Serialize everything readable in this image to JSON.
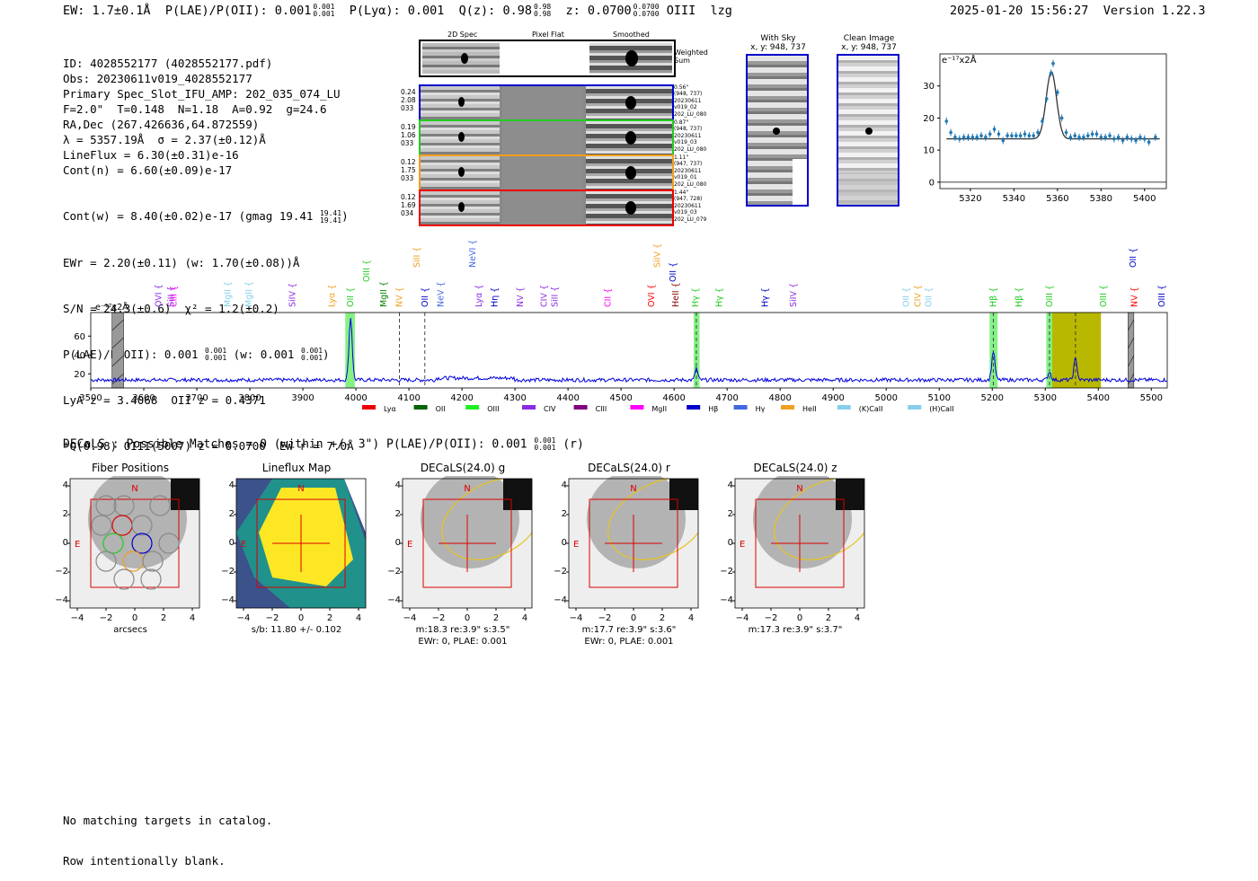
{
  "header": {
    "ew": "EW: 1.7±0.1Å",
    "plae_label": "P(LAE)/P(OII): 0.001",
    "plae_sup": "0.001",
    "plae_sub": "0.001",
    "plya": "P(Lyα): 0.001",
    "qz_label": "Q(z): 0.98",
    "qz_sup": "0.98",
    "qz_sub": "0.98",
    "z_label": "z: 0.0700",
    "z_sup": "0.0700",
    "z_sub": "0.0700",
    "z_line": "OIII",
    "flag": "lzg",
    "timestamp": "2025-01-20 15:56:27",
    "version": "Version 1.22.3"
  },
  "info": {
    "lines": [
      "ID: 4028552177 (4028552177.pdf)",
      "Obs: 20230611v019_4028552177",
      "Primary Spec_Slot_IFU_AMP: 202_035_074_LU",
      "F=2.0\"  T=0.148  N=1.18  A=0.92  g=24.6",
      "RA,Dec (267.426636,64.872559)",
      "λ = 5357.19Å  σ = 2.37(±0.12)Å",
      "LineFlux = 6.30(±0.31)e-16",
      "Cont(n) = 6.60(±0.09)e-17"
    ],
    "contw": "Cont(w) = 8.40(±0.02)e-17 (gmag 19.41",
    "contw_sup": "19.41",
    "contw_sub": "19.41",
    "contw_end": ")",
    "ewr": "EWr = 2.20(±0.11) (w: 1.70(±0.08))Å",
    "sn": "S/N = 24.3(±0.6)  χ² = 1.2(±0.2)",
    "plae2": "P(LAE)/P(OII): 0.001",
    "plae2_sup": "0.001",
    "plae2_sub": "0.001",
    "plae2_w": "(w: 0.001",
    "plae2_w_sup": "0.001",
    "plae2_w_sub": "0.001",
    "plae2_end": ")",
    "lya": "LyA z = 3.4068  OII z = 0.4371",
    "oiii": "*Q(0.98) OIII(5007) z = 0.0700  EW r = 7.0Å"
  },
  "cutouts": {
    "col_headers": [
      "2D Spec",
      "Pixel Flat",
      "Smoothed"
    ],
    "weighted_label": "Weighted Sum",
    "rows": [
      {
        "left": [
          "0.24",
          "2.08",
          "033"
        ],
        "right": [
          "0.56\"",
          "(948, 737)",
          "20230611",
          "v019_02",
          "202_LU_080"
        ],
        "color": "#0000cc"
      },
      {
        "left": [
          "0.19",
          "1.06",
          "033"
        ],
        "right": [
          "0.87\"",
          "(948, 737)",
          "20230611",
          "v019_03",
          "202_LU_080"
        ],
        "color": "#22cc22"
      },
      {
        "left": [
          "0.12",
          "1.75",
          "033"
        ],
        "right": [
          "1.11\"",
          "(947, 737)",
          "20230611",
          "v019_01",
          "202_LU_080"
        ],
        "color": "#f0a020"
      },
      {
        "left": [
          "0.12",
          "1.69",
          "034"
        ],
        "right": [
          "1.44\"",
          "(947, 728)",
          "20230611",
          "v019_03",
          "202_LU_079"
        ],
        "color": "#ee0000"
      }
    ],
    "with_sky": "With Sky",
    "with_sky_xy": "x, y: 948, 737",
    "clean": "Clean Image",
    "clean_xy": "x, y: 948, 737"
  },
  "zoom_chart": {
    "chart_data": {
      "type": "scatter",
      "ylabel": "e⁻¹⁷x2Å",
      "xlim": [
        5306,
        5410
      ],
      "ylim": [
        -2,
        40
      ],
      "xticks": [
        5320,
        5340,
        5360,
        5380,
        5400
      ],
      "yticks": [
        0,
        10,
        20,
        30
      ],
      "points": [
        [
          5309,
          19
        ],
        [
          5311,
          15.5
        ],
        [
          5313,
          14
        ],
        [
          5315,
          13.5
        ],
        [
          5317,
          14
        ],
        [
          5319,
          14
        ],
        [
          5321,
          14
        ],
        [
          5323,
          14
        ],
        [
          5325,
          14.5
        ],
        [
          5327,
          14
        ],
        [
          5329,
          15
        ],
        [
          5331,
          16.5
        ],
        [
          5333,
          15
        ],
        [
          5335,
          13
        ],
        [
          5337,
          14.5
        ],
        [
          5339,
          14.5
        ],
        [
          5341,
          14.5
        ],
        [
          5343,
          14.5
        ],
        [
          5345,
          15
        ],
        [
          5347,
          14.5
        ],
        [
          5349,
          14.5
        ],
        [
          5351,
          15.5
        ],
        [
          5353,
          19
        ],
        [
          5355,
          26
        ],
        [
          5357,
          34
        ],
        [
          5358,
          37
        ],
        [
          5360,
          28
        ],
        [
          5362,
          20
        ],
        [
          5364,
          15.5
        ],
        [
          5366,
          14
        ],
        [
          5368,
          14.5
        ],
        [
          5370,
          14
        ],
        [
          5372,
          14
        ],
        [
          5374,
          14.5
        ],
        [
          5376,
          15
        ],
        [
          5378,
          15
        ],
        [
          5380,
          14
        ],
        [
          5382,
          14
        ],
        [
          5384,
          14.5
        ],
        [
          5386,
          13.5
        ],
        [
          5388,
          14
        ],
        [
          5390,
          13
        ],
        [
          5392,
          14
        ],
        [
          5394,
          13.5
        ],
        [
          5396,
          13
        ],
        [
          5398,
          14
        ],
        [
          5400,
          13.5
        ],
        [
          5402,
          12.5
        ],
        [
          5405,
          14
        ]
      ],
      "model": {
        "continuum": 13.5,
        "center": 5357.19,
        "sigma": 2.37,
        "peak": 34.5
      }
    }
  },
  "lines": [
    {
      "label": "SiII",
      "x": 3652,
      "color": "#8a2be2",
      "row": 0
    },
    {
      "label": "OVI",
      "x": 3628,
      "color": "#8a2be2",
      "row": 0
    },
    {
      "label": "CIII",
      "x": 3657,
      "color": "#ff00ff",
      "row": 0
    },
    {
      "label": "MgII",
      "x": 3758,
      "color": "#87ceeb",
      "row": 0
    },
    {
      "label": "MgII",
      "x": 3798,
      "color": "#87ceeb",
      "row": 0
    },
    {
      "label": "SiIV",
      "x": 3880,
      "color": "#8a2be2",
      "row": 0
    },
    {
      "label": "Lyα",
      "x": 3955,
      "color": "#f0a020",
      "row": 0
    },
    {
      "label": "OII",
      "x": 3990,
      "color": "#22cc22",
      "row": 0
    },
    {
      "label": "OIII",
      "x": 4020,
      "color": "#22cc22",
      "row": 1
    },
    {
      "label": "MgII",
      "x": 4052,
      "color": "#008000",
      "row": 0
    },
    {
      "label": "NV",
      "x": 4082,
      "color": "#f0a020",
      "row": 0
    },
    {
      "label": "SiII",
      "x": 4115,
      "color": "#f0a020",
      "row": 2
    },
    {
      "label": "OII",
      "x": 4130,
      "color": "#0000cc",
      "row": 0
    },
    {
      "label": "NeV",
      "x": 4160,
      "color": "#4169e1",
      "row": 0
    },
    {
      "label": "NeVI",
      "x": 4220,
      "color": "#4169e1",
      "row": 2
    },
    {
      "label": "Lyα",
      "x": 4232,
      "color": "#8a2be2",
      "row": 0
    },
    {
      "label": "Hη",
      "x": 4262,
      "color": "#0000cc",
      "row": 0
    },
    {
      "label": "NV",
      "x": 4310,
      "color": "#8a2be2",
      "row": 0
    },
    {
      "label": "CIV",
      "x": 4355,
      "color": "#8a2be2",
      "row": 0
    },
    {
      "label": "SiII",
      "x": 4375,
      "color": "#8a2be2",
      "row": 0
    },
    {
      "label": "CII",
      "x": 4475,
      "color": "#ff00ff",
      "row": 0
    },
    {
      "label": "OVI",
      "x": 4557,
      "color": "#ff0000",
      "row": 0
    },
    {
      "label": "SiIV",
      "x": 4568,
      "color": "#f0a020",
      "row": 2
    },
    {
      "label": "OII",
      "x": 4598,
      "color": "#0000cc",
      "row": 1
    },
    {
      "label": "HeII",
      "x": 4603,
      "color": "#8b0000",
      "row": 0
    },
    {
      "label": "Hγ",
      "x": 4640,
      "color": "#22cc22",
      "row": 0
    },
    {
      "label": "Hγ",
      "x": 4685,
      "color": "#22cc22",
      "row": 0
    },
    {
      "label": "Hγ",
      "x": 4772,
      "color": "#0000cc",
      "row": 0
    },
    {
      "label": "SiIV",
      "x": 4825,
      "color": "#8a2be2",
      "row": 0
    },
    {
      "label": "OII",
      "x": 5038,
      "color": "#87ceeb",
      "row": 0
    },
    {
      "label": "CIV",
      "x": 5060,
      "color": "#f0a020",
      "row": 0
    },
    {
      "label": "OII",
      "x": 5080,
      "color": "#87ceeb",
      "row": 0
    },
    {
      "label": "Hβ",
      "x": 5202,
      "color": "#22cc22",
      "row": 0
    },
    {
      "label": "Hβ",
      "x": 5250,
      "color": "#22cc22",
      "row": 0
    },
    {
      "label": "OIII",
      "x": 5308,
      "color": "#22cc22",
      "row": 0
    },
    {
      "label": "OIII",
      "x": 5410,
      "color": "#22cc22",
      "row": 0
    },
    {
      "label": "NV",
      "x": 5468,
      "color": "#ff0000",
      "row": 0
    },
    {
      "label": "OII",
      "x": 5466,
      "color": "#0000cc",
      "row": 2
    },
    {
      "label": "OIII",
      "x": 5520,
      "color": "#0000cc",
      "row": 0
    }
  ],
  "spectrum": {
    "chart_data": {
      "type": "line",
      "ylabel": "e⁻¹⁷x2Å",
      "xlim": [
        3500,
        5530
      ],
      "ylim": [
        5,
        85
      ],
      "xticks": [
        3500,
        3600,
        3700,
        3800,
        3900,
        4000,
        4100,
        4200,
        4300,
        4400,
        4500,
        4600,
        4700,
        4800,
        4900,
        5000,
        5100,
        5200,
        5300,
        5400,
        5500
      ],
      "yticks": [
        20,
        40,
        60
      ],
      "baseline": 13.5,
      "emission": [
        {
          "x": 3990,
          "peak": 80,
          "width": 3
        },
        {
          "x": 4642,
          "peak": 26,
          "width": 2.5
        },
        {
          "x": 5202,
          "peak": 44,
          "width": 3
        },
        {
          "x": 5308,
          "peak": 22,
          "width": 3
        },
        {
          "x": 5357,
          "peak": 36,
          "width": 3
        }
      ],
      "highlight_green": [
        3980,
        3998,
        4637,
        4648,
        5195,
        5210,
        5302,
        5315
      ],
      "highlight_olive": [
        5313,
        5405
      ],
      "hatched": [
        3540,
        3562,
        5456,
        5467
      ],
      "dashed": [
        4082,
        4130,
        4642,
        5202,
        5308,
        5357
      ],
      "legend": [
        {
          "label": "Lyα",
          "color": "#ee0000"
        },
        {
          "label": "OII",
          "color": "#006400"
        },
        {
          "label": "OIII",
          "color": "#22ee22"
        },
        {
          "label": "CIV",
          "color": "#8a2be2"
        },
        {
          "label": "CIII",
          "color": "#800080"
        },
        {
          "label": "MgII",
          "color": "#ff00ff"
        },
        {
          "label": "Hβ",
          "color": "#0000cc"
        },
        {
          "label": "Hγ",
          "color": "#4169e1"
        },
        {
          "label": "HeII",
          "color": "#f0a020"
        },
        {
          "label": "(K)CaII",
          "color": "#87ceeb"
        },
        {
          "label": "(H)CaII",
          "color": "#87ceeb"
        }
      ]
    }
  },
  "decals": {
    "line_main": "DECaLS : Possible Matches = 0 (within +/- 3\")  P(LAE)/P(OII): 0.001",
    "line_sup": "0.001",
    "line_sub": "0.001",
    "line_end": "(r)",
    "panels": [
      {
        "title": "Fiber Positions",
        "cap1": "arcsecs",
        "cap2": ""
      },
      {
        "title": "Lineflux Map",
        "cap1": "s/b: 11.80 +/- 0.102",
        "cap2": ""
      },
      {
        "title": "DECaLS(24.0) g",
        "cap1": "m:18.3  re:3.9\"  s:3.5\"",
        "cap2": "EWr: 0, PLAE: 0.001"
      },
      {
        "title": "DECaLS(24.0) r",
        "cap1": "m:17.7  re:3.9\"  s:3.6\"",
        "cap2": "EWr: 0, PLAE: 0.001"
      },
      {
        "title": "DECaLS(24.0) z",
        "cap1": "m:17.3  re:3.9\"  s:3.7\"",
        "cap2": ""
      }
    ],
    "ticks": [
      "−4",
      "−2",
      "0",
      "2",
      "4"
    ],
    "north": "N",
    "east": "E"
  },
  "footer": {
    "line1": "No matching targets in catalog.",
    "line2": "Row intentionally blank."
  }
}
